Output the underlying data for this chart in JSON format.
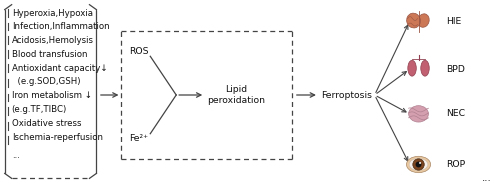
{
  "bg_color": "#ffffff",
  "left_box_text": [
    "Hyperoxia,Hypoxia",
    "Infection,Inflammation",
    "Acidosis,Hemolysis",
    "Blood transfusion",
    "Antioxidant capacity↓",
    "  (e.g.SOD,GSH)",
    "Iron metabolism ↓",
    "(e.g.TF,TIBC)",
    "Oxidative stress",
    "Ischemia-reperfusion",
    "..."
  ],
  "ros_label": "ROS",
  "fe_label": "Fe²⁺",
  "lipid_label": "Lipid\nperoxidation",
  "ferroptosis_label": "Ferroptosis",
  "disease_labels": [
    "HIE",
    "BPD",
    "NEC",
    "ROP"
  ],
  "ellipsis_right": "...",
  "font_size": 6.2,
  "text_color": "#111111",
  "line_color": "#444444"
}
